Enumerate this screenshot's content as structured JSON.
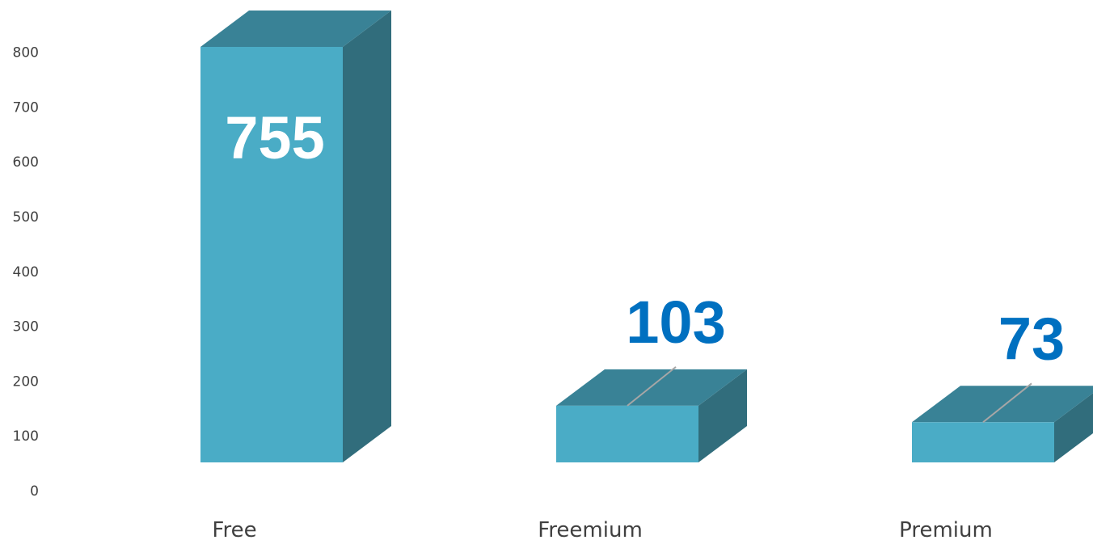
{
  "chart_data": {
    "type": "bar",
    "title": "",
    "xlabel": "",
    "ylabel": "",
    "categories": [
      "Free",
      "Freemium",
      "Premium"
    ],
    "values": [
      755,
      103,
      73
    ],
    "data_labels": [
      "755",
      "103",
      "73"
    ],
    "y_ticks": [
      "0",
      "100",
      "200",
      "300",
      "400",
      "500",
      "600",
      "700",
      "800"
    ],
    "ylim": [
      0,
      800
    ],
    "grid": false,
    "legend": "none",
    "style": "3d-column",
    "colors": {
      "bar_front": "#4aacc6",
      "bar_top": "#398296",
      "bar_side": "#316d7c",
      "label_inside": "#ffffff",
      "label_outside": "#0070c0",
      "leader_line": "#a6a6a6",
      "axis_text": "#404040"
    }
  }
}
